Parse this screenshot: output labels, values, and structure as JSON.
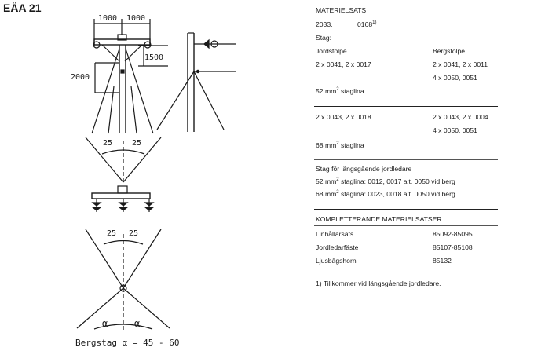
{
  "code": "EÄA 21",
  "drawing": {
    "dim_left": "1000",
    "dim_right": "1000",
    "dim_1500": "1500",
    "dim_2000": "2000",
    "angle_a": "25",
    "angle_b": "25",
    "angle_c": "25",
    "angle_d": "25",
    "alpha_left": "α",
    "alpha_right": "α",
    "caption": "Bergstag  α = 45 - 60"
  },
  "materielsats": {
    "title": "MATERIELSATS",
    "number": "2033,",
    "number2": "0168",
    "note_mark": "1)",
    "stag_label": "Stag:",
    "col1_head": "Jordstolpe",
    "col2_head": "Bergstolpe",
    "row1_col1": "2 x 0041, 2 x 0017",
    "row1_col2": "2 x 0041, 2 x 0011",
    "row1b_col2": "4 x 0050, 0051",
    "line1_label": "52 mm",
    "line1_sup": "2",
    "line1_suffix": " staglina",
    "row2_col1": "2 x 0043, 2 x 0018",
    "row2_col2": "2 x 0043, 2 x 0004",
    "row2b_col2": "4 x 0050, 0051",
    "line2_label": "68 mm",
    "line2_sup": "2",
    "line2_suffix": " staglina"
  },
  "langsgaende": {
    "title": "Stag för längsgående jordledare",
    "l1_prefix": "52 mm",
    "l1_sup": "2",
    "l1_rest": " staglina: 0012, 0017 alt. 0050 vid berg",
    "l2_prefix": "68 mm",
    "l2_sup": "2",
    "l2_rest": " staglina: 0023, 0018 alt. 0050 vid berg"
  },
  "komplett": {
    "title": "KOMPLETTERANDE MATERIELSATSER",
    "rows": [
      {
        "name": "Linhållarsats",
        "value": "85092-85095"
      },
      {
        "name": "Jordledarfäste",
        "value": "85107-85108"
      },
      {
        "name": "Ljusbågshorn",
        "value": "85132"
      }
    ]
  },
  "footnote": "1) Tillkommer vid längsgående jordledare."
}
